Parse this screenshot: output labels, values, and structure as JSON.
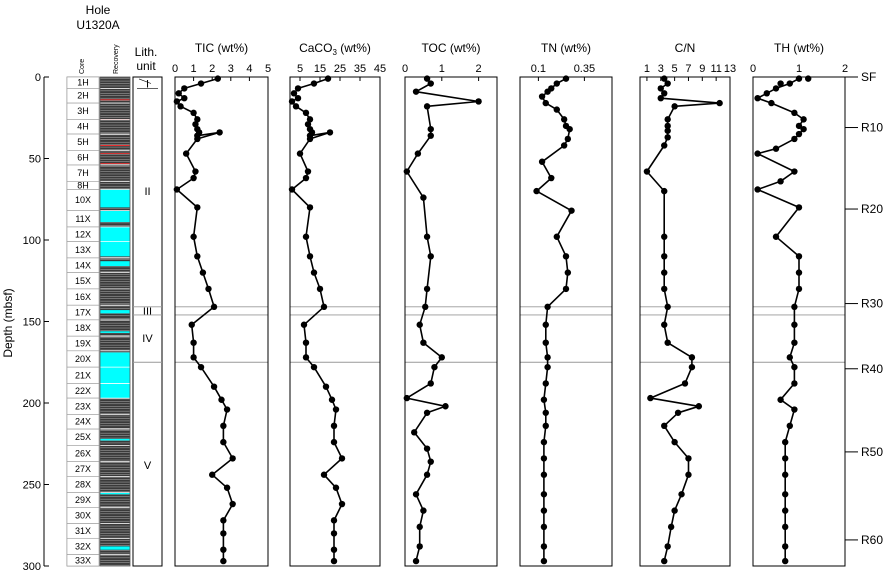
{
  "hole": {
    "line1": "Hole",
    "line2": "U1320A"
  },
  "depth_axis": {
    "label": "Depth (mbsf)",
    "min": 0,
    "max": 300,
    "ticks": [
      0,
      50,
      100,
      150,
      200,
      250,
      300
    ]
  },
  "core_column": {
    "header": "Core",
    "cores": [
      {
        "label": "1H",
        "top": 0,
        "bottom": 7
      },
      {
        "label": "2H",
        "top": 7,
        "bottom": 16
      },
      {
        "label": "3H",
        "top": 16,
        "bottom": 26
      },
      {
        "label": "4H",
        "top": 26,
        "bottom": 35
      },
      {
        "label": "5H",
        "top": 35,
        "bottom": 45
      },
      {
        "label": "6H",
        "top": 45,
        "bottom": 54
      },
      {
        "label": "7H",
        "top": 54,
        "bottom": 64
      },
      {
        "label": "8H",
        "top": 64,
        "bottom": 69
      },
      {
        "label": "10X",
        "top": 69,
        "bottom": 82
      },
      {
        "label": "11X",
        "top": 82,
        "bottom": 92
      },
      {
        "label": "12X",
        "top": 92,
        "bottom": 101
      },
      {
        "label": "13X",
        "top": 101,
        "bottom": 111
      },
      {
        "label": "14X",
        "top": 111,
        "bottom": 120
      },
      {
        "label": "15X",
        "top": 120,
        "bottom": 130
      },
      {
        "label": "16X",
        "top": 130,
        "bottom": 140
      },
      {
        "label": "17X",
        "top": 140,
        "bottom": 149
      },
      {
        "label": "18X",
        "top": 149,
        "bottom": 159
      },
      {
        "label": "19X",
        "top": 159,
        "bottom": 168
      },
      {
        "label": "20X",
        "top": 168,
        "bottom": 178
      },
      {
        "label": "21X",
        "top": 178,
        "bottom": 188
      },
      {
        "label": "22X",
        "top": 188,
        "bottom": 197
      },
      {
        "label": "23X",
        "top": 197,
        "bottom": 207
      },
      {
        "label": "24X",
        "top": 207,
        "bottom": 216
      },
      {
        "label": "25X",
        "top": 216,
        "bottom": 226
      },
      {
        "label": "26X",
        "top": 226,
        "bottom": 236
      },
      {
        "label": "27X",
        "top": 236,
        "bottom": 245
      },
      {
        "label": "28X",
        "top": 245,
        "bottom": 255
      },
      {
        "label": "29X",
        "top": 255,
        "bottom": 264
      },
      {
        "label": "30X",
        "top": 264,
        "bottom": 274
      },
      {
        "label": "31X",
        "top": 274,
        "bottom": 283
      },
      {
        "label": "32X",
        "top": 283,
        "bottom": 293
      },
      {
        "label": "33X",
        "top": 293,
        "bottom": 300
      }
    ]
  },
  "recovery_column": {
    "header": "Recovery",
    "base_color": "#3a3a3a",
    "gap_color": "#00ffff",
    "stripe_color": "#cfcfcf",
    "red_color": "#ff3030",
    "gaps": [
      [
        69,
        80
      ],
      [
        82,
        89
      ],
      [
        92,
        110
      ],
      [
        113,
        116
      ],
      [
        143,
        145
      ],
      [
        156,
        157
      ],
      [
        169,
        178
      ],
      [
        178,
        197
      ],
      [
        222,
        223
      ],
      [
        255,
        256
      ],
      [
        288,
        290
      ]
    ],
    "red_marks": [
      14,
      26,
      42,
      47,
      53
    ]
  },
  "lith_column": {
    "header_line1": "Lith.",
    "header_line2": "unit",
    "units": [
      {
        "label": "I",
        "top": 0,
        "bottom": 7,
        "label_depth": 4
      },
      {
        "label": "II",
        "top": 7,
        "bottom": 141,
        "label_depth": 70
      },
      {
        "label": "III",
        "top": 141,
        "bottom": 146,
        "label_depth": 143.5
      },
      {
        "label": "IV",
        "top": 146,
        "bottom": 175,
        "label_depth": 160
      },
      {
        "label": "V",
        "top": 175,
        "bottom": 300,
        "label_depth": 238
      }
    ],
    "boundaries": [
      141,
      146,
      175
    ]
  },
  "reflectors": [
    {
      "label": "SF",
      "depth": 0
    },
    {
      "label": "R10",
      "depth": 31
    },
    {
      "label": "R20",
      "depth": 81
    },
    {
      "label": "R30",
      "depth": 139
    },
    {
      "label": "R40",
      "depth": 179
    },
    {
      "label": "R50",
      "depth": 230
    },
    {
      "label": "R60",
      "depth": 284
    }
  ],
  "chart_data": [
    {
      "type": "line",
      "title": "TIC (wt%)",
      "xlim": [
        0,
        5
      ],
      "xticks": [
        0,
        1,
        2,
        3,
        4,
        5
      ],
      "points": [
        [
          2.3,
          1
        ],
        [
          1.4,
          4
        ],
        [
          0.5,
          7
        ],
        [
          0.2,
          10
        ],
        [
          0.5,
          13
        ],
        [
          0.1,
          15
        ],
        [
          0.3,
          18
        ],
        [
          1.0,
          22
        ],
        [
          1.2,
          26
        ],
        [
          1.1,
          29
        ],
        [
          1.2,
          32
        ],
        [
          1.3,
          34
        ],
        [
          1.2,
          36
        ],
        [
          2.4,
          34
        ],
        [
          1.2,
          38
        ],
        [
          0.6,
          47
        ],
        [
          1.1,
          58
        ],
        [
          1.0,
          62
        ],
        [
          0.1,
          69
        ],
        [
          1.2,
          80
        ],
        [
          1.0,
          98
        ],
        [
          1.2,
          110
        ],
        [
          1.5,
          120
        ],
        [
          1.8,
          130
        ],
        [
          2.1,
          141
        ],
        [
          0.9,
          152
        ],
        [
          1.0,
          163
        ],
        [
          1.0,
          172
        ],
        [
          1.4,
          178
        ],
        [
          2.1,
          190
        ],
        [
          2.5,
          198
        ],
        [
          2.8,
          204
        ],
        [
          2.6,
          214
        ],
        [
          2.6,
          224
        ],
        [
          3.1,
          234
        ],
        [
          2.0,
          244
        ],
        [
          2.8,
          252
        ],
        [
          3.1,
          262
        ],
        [
          2.6,
          272
        ],
        [
          2.6,
          280
        ],
        [
          2.6,
          290
        ],
        [
          2.6,
          297
        ]
      ]
    },
    {
      "type": "line",
      "title": "CaCO3 (wt%)",
      "title_main": "CaCO",
      "title_sub": "3",
      "title_tail": " (wt%)",
      "xlim": [
        0,
        45
      ],
      "xticks": [
        5,
        15,
        25,
        35,
        45
      ],
      "xtick_labels": [
        "5",
        "15",
        "25",
        "35",
        "45"
      ],
      "points": [
        [
          19,
          1
        ],
        [
          12,
          4
        ],
        [
          4,
          7
        ],
        [
          2,
          10
        ],
        [
          4,
          13
        ],
        [
          1,
          15
        ],
        [
          3,
          18
        ],
        [
          8,
          22
        ],
        [
          10,
          26
        ],
        [
          9,
          29
        ],
        [
          10,
          32
        ],
        [
          11,
          34
        ],
        [
          10,
          36
        ],
        [
          20,
          34
        ],
        [
          10,
          38
        ],
        [
          5,
          47
        ],
        [
          9,
          58
        ],
        [
          8,
          62
        ],
        [
          1,
          69
        ],
        [
          10,
          80
        ],
        [
          8,
          98
        ],
        [
          10,
          110
        ],
        [
          12,
          120
        ],
        [
          15,
          130
        ],
        [
          17,
          141
        ],
        [
          7,
          152
        ],
        [
          8,
          163
        ],
        [
          8,
          172
        ],
        [
          12,
          178
        ],
        [
          18,
          190
        ],
        [
          21,
          198
        ],
        [
          23,
          204
        ],
        [
          22,
          214
        ],
        [
          22,
          224
        ],
        [
          26,
          234
        ],
        [
          17,
          244
        ],
        [
          23,
          252
        ],
        [
          26,
          262
        ],
        [
          22,
          272
        ],
        [
          22,
          280
        ],
        [
          22,
          290
        ],
        [
          22,
          297
        ]
      ]
    },
    {
      "type": "line",
      "title": "TOC (wt%)",
      "xlim": [
        0,
        2.5
      ],
      "xticks": [
        0,
        1,
        2
      ],
      "points": [
        [
          0.6,
          1
        ],
        [
          0.7,
          4
        ],
        [
          0.3,
          9
        ],
        [
          2.0,
          15
        ],
        [
          0.6,
          18
        ],
        [
          0.7,
          32
        ],
        [
          0.7,
          36
        ],
        [
          0.35,
          47
        ],
        [
          0.05,
          58
        ],
        [
          0.5,
          74
        ],
        [
          0.6,
          98
        ],
        [
          0.7,
          110
        ],
        [
          0.6,
          130
        ],
        [
          0.55,
          141
        ],
        [
          0.4,
          152
        ],
        [
          0.5,
          163
        ],
        [
          1.0,
          172
        ],
        [
          0.8,
          178
        ],
        [
          0.7,
          188
        ],
        [
          0.05,
          197
        ],
        [
          1.1,
          202
        ],
        [
          0.6,
          206
        ],
        [
          0.25,
          218
        ],
        [
          0.6,
          228
        ],
        [
          0.7,
          236
        ],
        [
          0.6,
          244
        ],
        [
          0.3,
          256
        ],
        [
          0.5,
          266
        ],
        [
          0.4,
          276
        ],
        [
          0.4,
          288
        ],
        [
          0.3,
          297
        ]
      ]
    },
    {
      "type": "line",
      "title": "TN (wt%)",
      "xlim": [
        0,
        0.5
      ],
      "xticks": [
        0.1,
        0.35
      ],
      "xtick_labels": [
        "0.1",
        "0.35"
      ],
      "points": [
        [
          0.25,
          1
        ],
        [
          0.2,
          4
        ],
        [
          0.17,
          7
        ],
        [
          0.15,
          9
        ],
        [
          0.12,
          12
        ],
        [
          0.14,
          16
        ],
        [
          0.2,
          20
        ],
        [
          0.24,
          26
        ],
        [
          0.25,
          30
        ],
        [
          0.27,
          32
        ],
        [
          0.26,
          38
        ],
        [
          0.24,
          42
        ],
        [
          0.12,
          52
        ],
        [
          0.17,
          62
        ],
        [
          0.09,
          70
        ],
        [
          0.28,
          82
        ],
        [
          0.2,
          98
        ],
        [
          0.25,
          110
        ],
        [
          0.26,
          120
        ],
        [
          0.25,
          130
        ],
        [
          0.15,
          141
        ],
        [
          0.14,
          152
        ],
        [
          0.14,
          163
        ],
        [
          0.15,
          172
        ],
        [
          0.15,
          178
        ],
        [
          0.14,
          188
        ],
        [
          0.13,
          198
        ],
        [
          0.14,
          206
        ],
        [
          0.14,
          214
        ],
        [
          0.13,
          224
        ],
        [
          0.13,
          234
        ],
        [
          0.13,
          244
        ],
        [
          0.13,
          256
        ],
        [
          0.13,
          266
        ],
        [
          0.13,
          276
        ],
        [
          0.13,
          288
        ],
        [
          0.13,
          297
        ]
      ]
    },
    {
      "type": "line",
      "title": "C/N",
      "xlim": [
        0,
        13
      ],
      "xticks": [
        1,
        3,
        5,
        7,
        9,
        11,
        13
      ],
      "xtick_labels": [
        "1",
        "3",
        "5",
        "7",
        "9",
        "11",
        "13"
      ],
      "points": [
        [
          3.5,
          1
        ],
        [
          4,
          4
        ],
        [
          3,
          7
        ],
        [
          3.5,
          10
        ],
        [
          3,
          13
        ],
        [
          11.5,
          16
        ],
        [
          5,
          18
        ],
        [
          4,
          26
        ],
        [
          4,
          30
        ],
        [
          4,
          33
        ],
        [
          4,
          37
        ],
        [
          3.5,
          42
        ],
        [
          1,
          58
        ],
        [
          3.5,
          70
        ],
        [
          3.5,
          98
        ],
        [
          3.5,
          110
        ],
        [
          3.5,
          120
        ],
        [
          3.5,
          130
        ],
        [
          4,
          141
        ],
        [
          3.5,
          152
        ],
        [
          4,
          163
        ],
        [
          7.5,
          172
        ],
        [
          7.5,
          178
        ],
        [
          6.5,
          188
        ],
        [
          1.5,
          197
        ],
        [
          8.5,
          202
        ],
        [
          5.5,
          206
        ],
        [
          3.5,
          214
        ],
        [
          5,
          224
        ],
        [
          7,
          234
        ],
        [
          7,
          244
        ],
        [
          6,
          256
        ],
        [
          5,
          266
        ],
        [
          4.5,
          276
        ],
        [
          4,
          288
        ],
        [
          3.5,
          297
        ]
      ]
    },
    {
      "type": "line",
      "title": "TH (wt%)",
      "xlim": [
        0,
        2
      ],
      "xticks": [
        0,
        1,
        2
      ],
      "points": [
        [
          1.0,
          1
        ],
        [
          0.8,
          4
        ],
        [
          0.5,
          7
        ],
        [
          0.3,
          10
        ],
        [
          0.1,
          13
        ],
        [
          0.4,
          16
        ],
        [
          0.9,
          22
        ],
        [
          1.1,
          26
        ],
        [
          1.0,
          30
        ],
        [
          1.1,
          32
        ],
        [
          1.0,
          35
        ],
        [
          0.9,
          38
        ],
        [
          0.5,
          44
        ],
        [
          0.1,
          47
        ],
        [
          0.9,
          58
        ],
        [
          0.6,
          64
        ],
        [
          0.1,
          69
        ],
        [
          1.0,
          80
        ],
        [
          0.5,
          98
        ],
        [
          1.0,
          110
        ],
        [
          1.0,
          120
        ],
        [
          1.0,
          130
        ],
        [
          0.9,
          141
        ],
        [
          0.9,
          152
        ],
        [
          0.9,
          163
        ],
        [
          0.8,
          172
        ],
        [
          0.9,
          178
        ],
        [
          0.9,
          188
        ],
        [
          0.6,
          198
        ],
        [
          0.9,
          204
        ],
        [
          0.8,
          214
        ],
        [
          0.7,
          224
        ],
        [
          0.7,
          234
        ],
        [
          0.7,
          244
        ],
        [
          0.7,
          256
        ],
        [
          0.7,
          266
        ],
        [
          0.7,
          276
        ],
        [
          0.7,
          288
        ],
        [
          0.7,
          297
        ]
      ],
      "extra_points": [
        [
          1.2,
          1
        ],
        [
          0.6,
          4
        ]
      ]
    }
  ]
}
